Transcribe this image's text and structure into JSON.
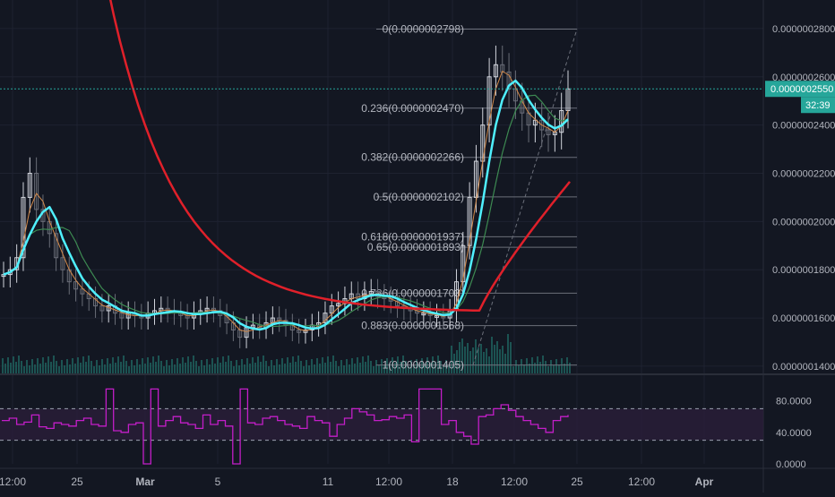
{
  "colors": {
    "background": "#131722",
    "grid": "#1e2230",
    "axis_text": "#b2b5be",
    "candle_up": "#d1d4dc",
    "candle_down": "#6a6d78",
    "ma_red": "#e0202a",
    "ma_cyan": "#4ff0ff",
    "ma_orange": "#d38a4a",
    "ma_green": "#3d8a52",
    "fib_line": "#6b6f7a",
    "fib_text": "#b2b5be",
    "price_line": "#26a69a",
    "price_tag": "#26a69a",
    "volume": "#1e5e5a",
    "rsi_line": "#c31ec8",
    "rsi_band": "#2a1e3a",
    "rsi_band_edge": "#9aa0b0"
  },
  "chart_data": {
    "type": "candlestick",
    "price_axis": {
      "ylim": [
        1.37e-07,
        2.9e-07
      ],
      "ticks": [
        {
          "value": 1.4e-07,
          "label": "0.0000001400"
        },
        {
          "value": 1.6e-07,
          "label": "0.0000001600"
        },
        {
          "value": 1.8e-07,
          "label": "0.0000001800"
        },
        {
          "value": 2e-07,
          "label": "0.0000002000"
        },
        {
          "value": 2.2e-07,
          "label": "0.0000002200"
        },
        {
          "value": 2.4e-07,
          "label": "0.0000002400"
        },
        {
          "value": 2.6e-07,
          "label": "0.0000002600"
        },
        {
          "value": 2.8e-07,
          "label": "0.0000002800"
        }
      ]
    },
    "x_axis": {
      "ticks": [
        "12:00",
        "25",
        "Mar",
        "5",
        "11",
        "12:00",
        "18",
        "12:00",
        "25",
        "12:00",
        "Apr"
      ]
    },
    "last_price": {
      "value": 2.55e-07,
      "label": "0.0000002550"
    },
    "countdown": "32:39",
    "fib_levels": [
      {
        "ratio": 0,
        "value": 2.798e-07,
        "label": "0(0.0000002798)"
      },
      {
        "ratio": 0.236,
        "value": 2.47e-07,
        "label": "0.236(0.0000002470)"
      },
      {
        "ratio": 0.382,
        "value": 2.266e-07,
        "label": "0.382(0.0000002266)"
      },
      {
        "ratio": 0.5,
        "value": 2.102e-07,
        "label": "0.5(0.0000002102)"
      },
      {
        "ratio": 0.618,
        "value": 1.937e-07,
        "label": "0.618(0.0000001937)"
      },
      {
        "ratio": 0.65,
        "value": 1.893e-07,
        "label": "0.65(0.0000001893)"
      },
      {
        "ratio": 0.786,
        "value": 1.703e-07,
        "label": "0.786(0.0000001703)"
      },
      {
        "ratio": 0.883,
        "value": 1.568e-07,
        "label": "0.883(0.0000001568)"
      },
      {
        "ratio": 1,
        "value": 1.405e-07,
        "label": "1(0.0000001405)"
      }
    ],
    "candles_close": [
      1.78e-07,
      1.8e-07,
      1.85e-07,
      2.1e-07,
      2.2e-07,
      2.05e-07,
      2e-07,
      1.95e-07,
      1.85e-07,
      1.8e-07,
      1.75e-07,
      1.72e-07,
      1.7e-07,
      1.68e-07,
      1.65e-07,
      1.63e-07,
      1.65e-07,
      1.62e-07,
      1.6e-07,
      1.62e-07,
      1.61e-07,
      1.6e-07,
      1.62e-07,
      1.63e-07,
      1.64e-07,
      1.63e-07,
      1.62e-07,
      1.61e-07,
      1.6e-07,
      1.62e-07,
      1.63e-07,
      1.64e-07,
      1.63e-07,
      1.61e-07,
      1.58e-07,
      1.55e-07,
      1.52e-07,
      1.56e-07,
      1.57e-07,
      1.56e-07,
      1.58e-07,
      1.6e-07,
      1.59e-07,
      1.57e-07,
      1.55e-07,
      1.54e-07,
      1.55e-07,
      1.57e-07,
      1.58e-07,
      1.62e-07,
      1.65e-07,
      1.66e-07,
      1.68e-07,
      1.7e-07,
      1.68e-07,
      1.7e-07,
      1.71e-07,
      1.69e-07,
      1.68e-07,
      1.67e-07,
      1.65e-07,
      1.64e-07,
      1.63e-07,
      1.62e-07,
      1.62e-07,
      1.61e-07,
      1.61e-07,
      1.6e-07,
      1.63e-07,
      1.75e-07,
      1.9e-07,
      2.1e-07,
      2.25e-07,
      2.4e-07,
      2.6e-07,
      2.65e-07,
      2.62e-07,
      2.55e-07,
      2.5e-07,
      2.45e-07,
      2.4e-07,
      2.42e-07,
      2.38e-07,
      2.36e-07,
      2.37e-07,
      2.46e-07,
      2.55e-07
    ],
    "ma_slow": [
      2.95e-07,
      2.7e-07,
      2.5e-07,
      2.33e-07,
      2.2e-07,
      2.08e-07,
      1.98e-07,
      1.9e-07,
      1.83e-07,
      1.78e-07,
      1.74e-07,
      1.71e-07,
      1.69e-07,
      1.67e-07,
      1.66e-07,
      1.65e-07,
      1.64e-07,
      1.63e-07,
      1.62e-07,
      1.62e-07,
      1.61e-07,
      1.61e-07,
      2.2e-07
    ],
    "rsi": {
      "ylim": [
        0,
        100
      ],
      "ticks": [
        {
          "value": 0,
          "label": "0.0000"
        },
        {
          "value": 40,
          "label": "40.0000"
        },
        {
          "value": 80,
          "label": "80.0000"
        }
      ],
      "upper_band": 70,
      "lower_band": 30,
      "values": [
        55,
        58,
        50,
        53,
        62,
        47,
        45,
        52,
        50,
        48,
        55,
        58,
        50,
        48,
        95,
        42,
        40,
        50,
        52,
        0,
        95,
        48,
        55,
        60,
        52,
        50,
        45,
        62,
        50,
        55,
        48,
        0,
        95,
        52,
        50,
        58,
        60,
        55,
        50,
        48,
        45,
        60,
        55,
        52,
        35,
        50,
        58,
        70,
        66,
        62,
        55,
        56,
        60,
        58,
        62,
        28,
        95,
        95,
        95,
        50,
        55,
        40,
        35,
        25,
        60,
        62,
        70,
        75,
        68,
        60,
        55,
        50,
        45,
        40,
        55,
        60,
        62
      ]
    }
  }
}
